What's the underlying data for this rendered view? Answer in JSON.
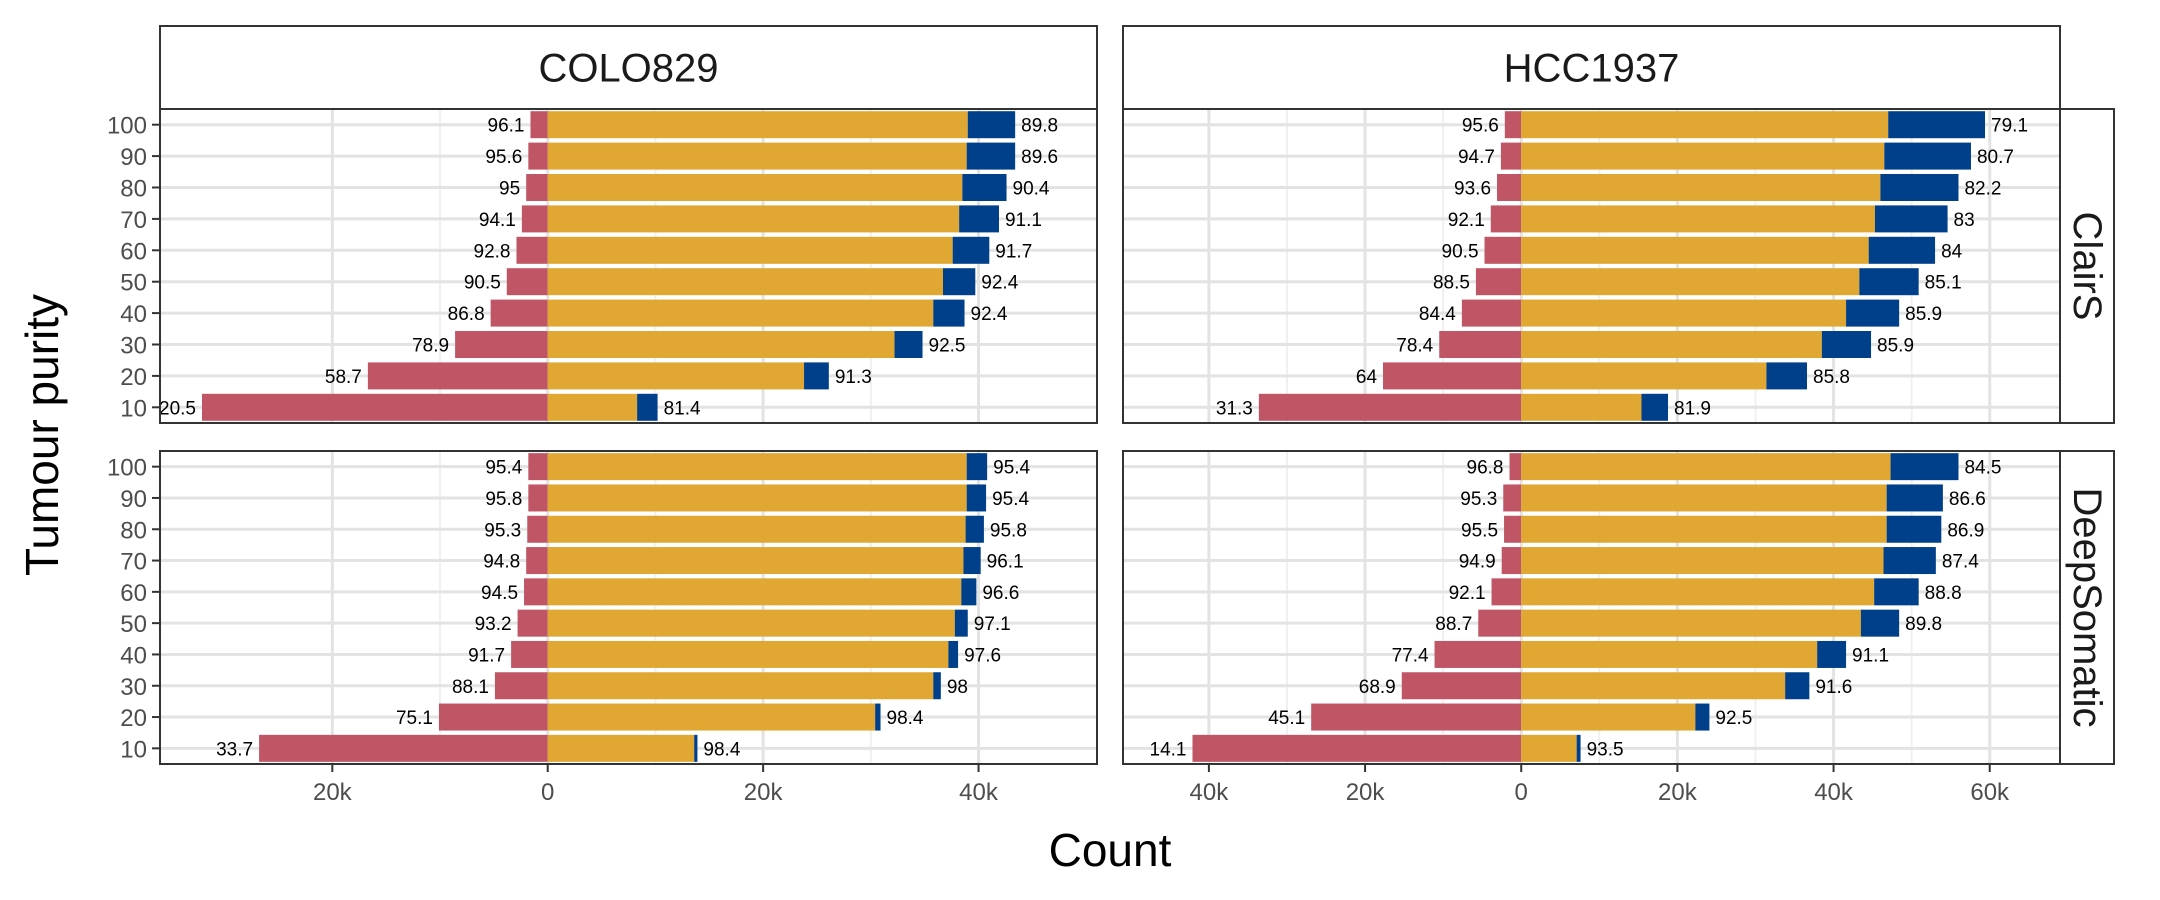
{
  "chart_data": {
    "type": "bar",
    "orientation": "horizontal",
    "layout": "facet_grid",
    "xlabel": "Count",
    "ylabel": "Tumour purity",
    "categories": [
      "100",
      "90",
      "80",
      "70",
      "60",
      "50",
      "40",
      "30",
      "20",
      "10"
    ],
    "columns": [
      "COLO829",
      "HCC1937"
    ],
    "rows": [
      "ClairS",
      "DeepSomatic"
    ],
    "series_colors": {
      "negative": "#C05566",
      "center": "#E0A832",
      "extension": "#003F8A"
    },
    "panels": [
      {
        "column": "COLO829",
        "row": "ClairS",
        "xlim": [
          -36000,
          51000
        ],
        "xticks": [
          -20000,
          0,
          20000,
          40000
        ],
        "xtick_labels": [
          "20k",
          "0",
          "20k",
          "40k"
        ],
        "bars": [
          {
            "negative": -1600,
            "center": 39000,
            "extension": 4400,
            "left_label": "96.1",
            "right_label": "89.8"
          },
          {
            "negative": -1800,
            "center": 38900,
            "extension": 4500,
            "left_label": "95.6",
            "right_label": "89.6"
          },
          {
            "negative": -2000,
            "center": 38500,
            "extension": 4100,
            "left_label": "95",
            "right_label": "90.4"
          },
          {
            "negative": -2400,
            "center": 38200,
            "extension": 3700,
            "left_label": "94.1",
            "right_label": "91.1"
          },
          {
            "negative": -2900,
            "center": 37600,
            "extension": 3400,
            "left_label": "92.8",
            "right_label": "91.7"
          },
          {
            "negative": -3800,
            "center": 36700,
            "extension": 3000,
            "left_label": "90.5",
            "right_label": "92.4"
          },
          {
            "negative": -5300,
            "center": 35800,
            "extension": 2900,
            "left_label": "86.8",
            "right_label": "92.4"
          },
          {
            "negative": -8600,
            "center": 32200,
            "extension": 2600,
            "left_label": "78.9",
            "right_label": "92.5"
          },
          {
            "negative": -16700,
            "center": 23800,
            "extension": 2300,
            "left_label": "58.7",
            "right_label": "91.3"
          },
          {
            "negative": -32100,
            "center": 8300,
            "extension": 1900,
            "left_label": "20.5",
            "right_label": "81.4"
          }
        ]
      },
      {
        "column": "HCC1937",
        "row": "ClairS",
        "xlim": [
          -51000,
          69000
        ],
        "xticks": [
          -40000,
          -20000,
          0,
          20000,
          40000,
          60000
        ],
        "xtick_labels": [
          "40k",
          "20k",
          "0",
          "20k",
          "40k",
          "60k"
        ],
        "bars": [
          {
            "negative": -2100,
            "center": 47000,
            "extension": 12400,
            "left_label": "95.6",
            "right_label": "79.1"
          },
          {
            "negative": -2600,
            "center": 46500,
            "extension": 11100,
            "left_label": "94.7",
            "right_label": "80.7"
          },
          {
            "negative": -3100,
            "center": 46000,
            "extension": 10000,
            "left_label": "93.6",
            "right_label": "82.2"
          },
          {
            "negative": -3900,
            "center": 45300,
            "extension": 9300,
            "left_label": "92.1",
            "right_label": "83"
          },
          {
            "negative": -4700,
            "center": 44500,
            "extension": 8500,
            "left_label": "90.5",
            "right_label": "84"
          },
          {
            "negative": -5800,
            "center": 43300,
            "extension": 7600,
            "left_label": "88.5",
            "right_label": "85.1"
          },
          {
            "negative": -7600,
            "center": 41600,
            "extension": 6800,
            "left_label": "84.4",
            "right_label": "85.9"
          },
          {
            "negative": -10500,
            "center": 38500,
            "extension": 6300,
            "left_label": "78.4",
            "right_label": "85.9"
          },
          {
            "negative": -17700,
            "center": 31400,
            "extension": 5200,
            "left_label": "64",
            "right_label": "85.8"
          },
          {
            "negative": -33600,
            "center": 15400,
            "extension": 3400,
            "left_label": "31.3",
            "right_label": "81.9"
          }
        ]
      },
      {
        "column": "COLO829",
        "row": "DeepSomatic",
        "xlim": [
          -36000,
          51000
        ],
        "xticks": [
          -20000,
          0,
          20000,
          40000
        ],
        "xtick_labels": [
          "20k",
          "0",
          "20k",
          "40k"
        ],
        "bars": [
          {
            "negative": -1800,
            "center": 38900,
            "extension": 1900,
            "left_label": "95.4",
            "right_label": "95.4"
          },
          {
            "negative": -1800,
            "center": 38900,
            "extension": 1800,
            "left_label": "95.8",
            "right_label": "95.4"
          },
          {
            "negative": -1900,
            "center": 38800,
            "extension": 1700,
            "left_label": "95.3",
            "right_label": "95.8"
          },
          {
            "negative": -2000,
            "center": 38600,
            "extension": 1600,
            "left_label": "94.8",
            "right_label": "96.1"
          },
          {
            "negative": -2200,
            "center": 38400,
            "extension": 1400,
            "left_label": "94.5",
            "right_label": "96.6"
          },
          {
            "negative": -2800,
            "center": 37800,
            "extension": 1200,
            "left_label": "93.2",
            "right_label": "97.1"
          },
          {
            "negative": -3400,
            "center": 37200,
            "extension": 900,
            "left_label": "91.7",
            "right_label": "97.6"
          },
          {
            "negative": -4900,
            "center": 35800,
            "extension": 700,
            "left_label": "88.1",
            "right_label": "98"
          },
          {
            "negative": -10100,
            "center": 30400,
            "extension": 500,
            "left_label": "75.1",
            "right_label": "98.4"
          },
          {
            "negative": -26800,
            "center": 13600,
            "extension": 300,
            "left_label": "33.7",
            "right_label": "98.4"
          }
        ]
      },
      {
        "column": "HCC1937",
        "row": "DeepSomatic",
        "xlim": [
          -51000,
          69000
        ],
        "xticks": [
          -40000,
          -20000,
          0,
          20000,
          40000,
          60000
        ],
        "xtick_labels": [
          "40k",
          "20k",
          "0",
          "20k",
          "40k",
          "60k"
        ],
        "bars": [
          {
            "negative": -1500,
            "center": 47300,
            "extension": 8700,
            "left_label": "96.8",
            "right_label": "84.5"
          },
          {
            "negative": -2300,
            "center": 46800,
            "extension": 7200,
            "left_label": "95.3",
            "right_label": "86.6"
          },
          {
            "negative": -2200,
            "center": 46800,
            "extension": 7000,
            "left_label": "95.5",
            "right_label": "86.9"
          },
          {
            "negative": -2500,
            "center": 46400,
            "extension": 6700,
            "left_label": "94.9",
            "right_label": "87.4"
          },
          {
            "negative": -3800,
            "center": 45200,
            "extension": 5700,
            "left_label": "92.1",
            "right_label": "88.8"
          },
          {
            "negative": -5500,
            "center": 43500,
            "extension": 4900,
            "left_label": "88.7",
            "right_label": "89.8"
          },
          {
            "negative": -11100,
            "center": 37900,
            "extension": 3700,
            "left_label": "77.4",
            "right_label": "91.1"
          },
          {
            "negative": -15300,
            "center": 33800,
            "extension": 3100,
            "left_label": "68.9",
            "right_label": "91.6"
          },
          {
            "negative": -26900,
            "center": 22300,
            "extension": 1800,
            "left_label": "45.1",
            "right_label": "92.5"
          },
          {
            "negative": -42100,
            "center": 7100,
            "extension": 500,
            "left_label": "14.1",
            "right_label": "93.5"
          }
        ]
      }
    ]
  }
}
